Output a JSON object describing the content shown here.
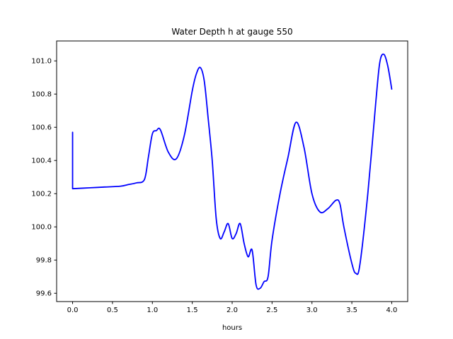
{
  "chart_data": {
    "type": "line",
    "title": "Water Depth h at gauge 550",
    "xlabel": "hours",
    "ylabel": "",
    "xlim": [
      -0.2,
      4.2
    ],
    "ylim": [
      99.55,
      101.12
    ],
    "xticks": [
      0.0,
      0.5,
      1.0,
      1.5,
      2.0,
      2.5,
      3.0,
      3.5,
      4.0
    ],
    "xtick_labels": [
      "0.0",
      "0.5",
      "1.0",
      "1.5",
      "2.0",
      "2.5",
      "3.0",
      "3.5",
      "4.0"
    ],
    "yticks": [
      99.6,
      99.8,
      100.0,
      100.2,
      100.4,
      100.6,
      100.8,
      101.0
    ],
    "ytick_labels": [
      "99.6",
      "99.8",
      "100.0",
      "100.2",
      "100.4",
      "100.6",
      "100.8",
      "101.0"
    ],
    "grid": false,
    "series": [
      {
        "color": "#0000ff",
        "x": [
          0.0,
          0.0,
          0.2,
          0.4,
          0.6,
          0.7,
          0.8,
          0.9,
          0.95,
          1.0,
          1.05,
          1.1,
          1.2,
          1.3,
          1.4,
          1.5,
          1.55,
          1.6,
          1.65,
          1.7,
          1.75,
          1.8,
          1.85,
          1.9,
          1.95,
          2.0,
          2.05,
          2.1,
          2.15,
          2.2,
          2.25,
          2.3,
          2.35,
          2.4,
          2.45,
          2.5,
          2.6,
          2.7,
          2.8,
          2.9,
          3.0,
          3.1,
          3.2,
          3.3,
          3.35,
          3.4,
          3.5,
          3.55,
          3.6,
          3.7,
          3.8,
          3.85,
          3.9,
          3.95,
          4.0
        ],
        "y": [
          100.57,
          100.23,
          100.235,
          100.24,
          100.245,
          100.255,
          100.265,
          100.285,
          100.42,
          100.56,
          100.58,
          100.585,
          100.45,
          100.41,
          100.55,
          100.82,
          100.92,
          100.96,
          100.88,
          100.65,
          100.4,
          100.05,
          99.93,
          99.97,
          100.02,
          99.93,
          99.96,
          100.02,
          99.9,
          99.82,
          99.86,
          99.65,
          99.63,
          99.67,
          99.7,
          99.92,
          100.2,
          100.42,
          100.63,
          100.48,
          100.2,
          100.09,
          100.11,
          100.16,
          100.14,
          100.0,
          99.78,
          99.72,
          99.77,
          100.2,
          100.75,
          100.99,
          101.04,
          100.97,
          100.83
        ]
      }
    ]
  }
}
